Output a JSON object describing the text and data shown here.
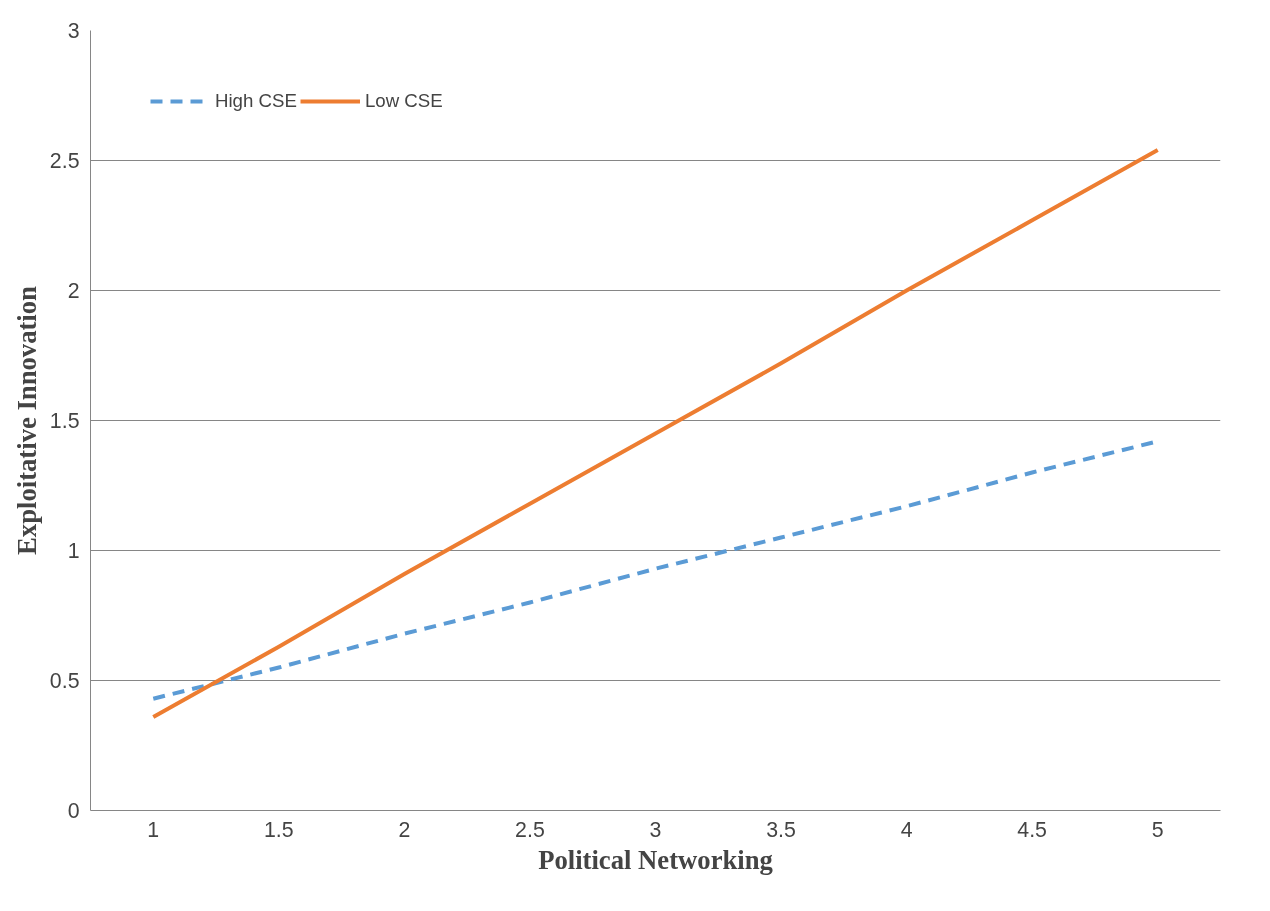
{
  "chart_data": {
    "type": "line",
    "xlabel": "Political Networking",
    "ylabel": "Exploitative Innovation",
    "categories": [
      "1",
      "1.5",
      "2",
      "2.5",
      "3",
      "3.5",
      "4",
      "4.5",
      "5"
    ],
    "series": [
      {
        "name": "High CSE",
        "color": "#5b9bd5",
        "line_style": "dashed",
        "values": [
          0.43,
          0.55,
          0.68,
          0.8,
          0.93,
          1.05,
          1.17,
          1.3,
          1.42
        ]
      },
      {
        "name": "Low CSE",
        "color": "#ed7d31",
        "line_style": "solid",
        "values": [
          0.36,
          0.63,
          0.91,
          1.18,
          1.45,
          1.72,
          2.0,
          2.27,
          2.54
        ]
      }
    ],
    "ylim": [
      0,
      3
    ],
    "yticks": [
      0,
      0.5,
      1,
      1.5,
      2,
      2.5,
      3
    ],
    "grid": "y",
    "legend": "top left",
    "marker": "none"
  }
}
